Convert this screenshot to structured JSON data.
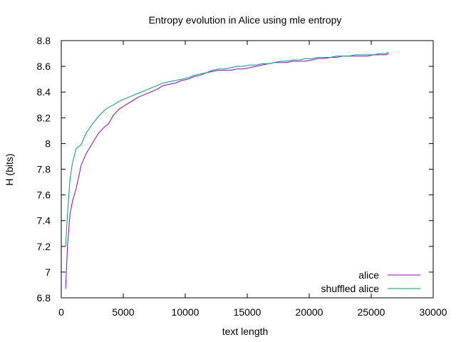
{
  "chart_data": {
    "type": "line",
    "title": "Entropy evolution in Alice using mle entropy",
    "xlabel": "text length",
    "ylabel": "H (bits)",
    "xlim": [
      0,
      30000
    ],
    "ylim": [
      6.8,
      8.8
    ],
    "xticks": [
      0,
      5000,
      10000,
      15000,
      20000,
      25000,
      30000
    ],
    "xtick_labels": [
      "0",
      "5000",
      "10000",
      "15000",
      "20000",
      "25000",
      "30000"
    ],
    "yticks": [
      6.8,
      7,
      7.2,
      7.4,
      7.6,
      7.8,
      8,
      8.2,
      8.4,
      8.6,
      8.8
    ],
    "ytick_labels": [
      "6.8",
      "7",
      "7.2",
      "7.4",
      "7.6",
      "7.8",
      "8",
      "8.2",
      "8.4",
      "8.6",
      "8.8"
    ],
    "grid": false,
    "legend_position": "bottom-right",
    "series": [
      {
        "name": "alice",
        "color": "#9400d3",
        "x": [
          350,
          500,
          700,
          900,
          1200,
          1600,
          2000,
          2500,
          3000,
          3500,
          3800,
          4200,
          4700,
          5200,
          5700,
          6200,
          6700,
          7200,
          7700,
          8200,
          8700,
          9200,
          9700,
          10200,
          10700,
          11200,
          11700,
          12200,
          12700,
          13200,
          13700,
          14200,
          14700,
          15200,
          15700,
          16200,
          16700,
          17200,
          17700,
          18200,
          18700,
          19200,
          19700,
          20200,
          20700,
          21200,
          21700,
          22200,
          22700,
          23200,
          23700,
          24200,
          24700,
          25200,
          25700,
          26200,
          26400
        ],
        "y": [
          6.87,
          7.2,
          7.45,
          7.55,
          7.65,
          7.83,
          7.92,
          8.0,
          8.08,
          8.13,
          8.15,
          8.22,
          8.27,
          8.3,
          8.33,
          8.36,
          8.38,
          8.4,
          8.42,
          8.45,
          8.46,
          8.47,
          8.49,
          8.5,
          8.52,
          8.53,
          8.55,
          8.56,
          8.57,
          8.57,
          8.57,
          8.58,
          8.58,
          8.59,
          8.6,
          8.61,
          8.62,
          8.63,
          8.63,
          8.63,
          8.64,
          8.64,
          8.64,
          8.65,
          8.66,
          8.66,
          8.67,
          8.67,
          8.68,
          8.68,
          8.68,
          8.68,
          8.68,
          8.69,
          8.69,
          8.69,
          8.7
        ]
      },
      {
        "name": "shuffled alice",
        "color": "#009e73",
        "x": [
          350,
          500,
          700,
          900,
          1200,
          1600,
          2000,
          2500,
          3000,
          3500,
          3800,
          4200,
          4700,
          5200,
          5700,
          6200,
          6700,
          7200,
          7700,
          8200,
          8700,
          9200,
          9700,
          10200,
          10700,
          11200,
          11700,
          12200,
          12700,
          13200,
          13700,
          14200,
          14700,
          15200,
          15700,
          16200,
          16700,
          17200,
          17700,
          18200,
          18700,
          19200,
          19700,
          20200,
          20700,
          21200,
          21700,
          22200,
          22700,
          23200,
          23700,
          24200,
          24700,
          25200,
          25700,
          26200,
          26400
        ],
        "y": [
          7.2,
          7.45,
          7.72,
          7.85,
          7.96,
          7.99,
          8.08,
          8.15,
          8.21,
          8.26,
          8.28,
          8.3,
          8.33,
          8.35,
          8.37,
          8.39,
          8.41,
          8.43,
          8.45,
          8.47,
          8.48,
          8.49,
          8.5,
          8.51,
          8.53,
          8.54,
          8.55,
          8.57,
          8.58,
          8.58,
          8.59,
          8.6,
          8.6,
          8.61,
          8.61,
          8.62,
          8.62,
          8.63,
          8.64,
          8.64,
          8.65,
          8.65,
          8.66,
          8.66,
          8.67,
          8.67,
          8.67,
          8.68,
          8.68,
          8.68,
          8.69,
          8.69,
          8.69,
          8.69,
          8.7,
          8.7,
          8.71
        ]
      }
    ]
  }
}
